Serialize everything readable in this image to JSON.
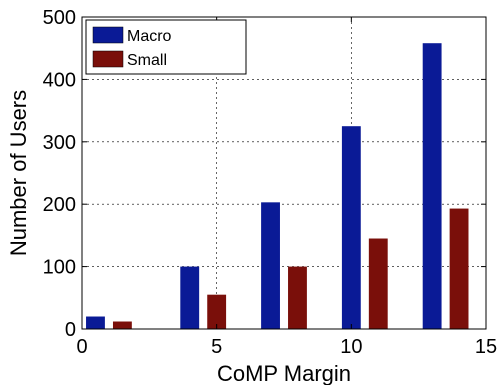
{
  "chart_data": {
    "type": "bar",
    "title": "",
    "xlabel": "CoMP Margin",
    "ylabel": "Number of Users",
    "x": [
      0.5,
      1.5,
      4,
      5,
      7,
      8,
      10,
      11,
      13,
      14
    ],
    "series": [
      {
        "name": "Macro",
        "color": "#0a1a96",
        "x": [
          0.5,
          4,
          7,
          10,
          13
        ],
        "values": [
          20,
          100,
          203,
          325,
          458
        ]
      },
      {
        "name": "Small",
        "color": "#7a0f0a",
        "x": [
          1.5,
          5,
          8,
          11,
          14
        ],
        "values": [
          12,
          55,
          100,
          145,
          193
        ]
      }
    ],
    "xlim": [
      0,
      15
    ],
    "ylim": [
      0,
      500
    ],
    "xticks": [
      0,
      5,
      10,
      15
    ],
    "yticks": [
      0,
      100,
      200,
      300,
      400,
      500
    ],
    "grid": true,
    "legend_position": "top-left"
  }
}
